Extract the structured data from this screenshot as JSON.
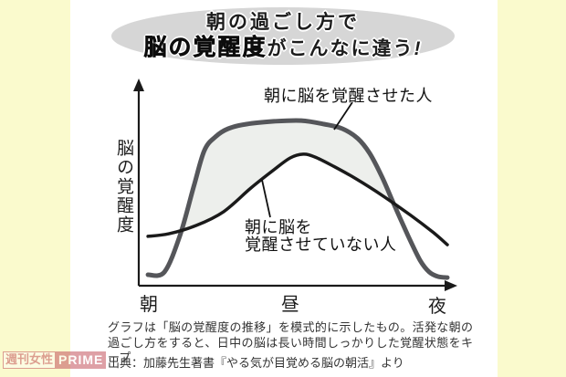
{
  "page": {
    "outer_bg": "#fafacd",
    "panel_bg": "#ffffff"
  },
  "title": {
    "ellipse_color": "#d6d6d6",
    "line1": "朝の過ごし方で",
    "line2_emphasis": "脳の覚醒度",
    "line2_tail": "がこんなに違う",
    "line2_exclaim": "!"
  },
  "chart_data": {
    "type": "line",
    "title": "朝の過ごし方で脳の覚醒度がこんなに違う!",
    "ylabel": "脳の覚醒度",
    "x_ticks": [
      "朝",
      "昼",
      "夜"
    ],
    "y_axis_note": "模式図・数値目盛りなし（相対的な覚醒度 0-100 で表現）",
    "x_axis_note": "x は 朝→夜 を 0-1 に正規化",
    "grid": false,
    "band_fill_color": "#edefec",
    "series": [
      {
        "name": "朝に脳を覚醒させた人",
        "color": "#55565a",
        "stroke_width": 5,
        "points": [
          [
            0.029,
            5.5
          ],
          [
            0.081,
            6.9
          ],
          [
            0.13,
            25.2
          ],
          [
            0.173,
            49.5
          ],
          [
            0.207,
            67.9
          ],
          [
            0.242,
            74.8
          ],
          [
            0.282,
            78.9
          ],
          [
            0.34,
            81.2
          ],
          [
            0.427,
            82.6
          ],
          [
            0.513,
            83.0
          ],
          [
            0.585,
            81.2
          ],
          [
            0.643,
            78.9
          ],
          [
            0.692,
            73.9
          ],
          [
            0.729,
            66.5
          ],
          [
            0.767,
            55.0
          ],
          [
            0.807,
            40.4
          ],
          [
            0.85,
            25.2
          ],
          [
            0.888,
            12.8
          ],
          [
            0.917,
            6.9
          ],
          [
            0.945,
            4.6
          ],
          [
            0.974,
            4.1
          ]
        ]
      },
      {
        "name": "朝に脳を覚醒させていない人",
        "color": "#1a1a1a",
        "stroke_width": 3.5,
        "points": [
          [
            0.029,
            24.8
          ],
          [
            0.095,
            26.1
          ],
          [
            0.182,
            30.3
          ],
          [
            0.268,
            37.2
          ],
          [
            0.354,
            49.1
          ],
          [
            0.427,
            58.3
          ],
          [
            0.478,
            64.2
          ],
          [
            0.519,
            66.1
          ],
          [
            0.556,
            64.7
          ],
          [
            0.614,
            60.1
          ],
          [
            0.686,
            53.7
          ],
          [
            0.772,
            45.0
          ],
          [
            0.859,
            35.3
          ],
          [
            0.931,
            26.6
          ],
          [
            0.974,
            20.6
          ]
        ]
      }
    ],
    "band": {
      "top_series": 0,
      "top_index_range": [
        2,
        16
      ],
      "bottom_reversed": [
        [
          0.807,
          41.0
        ],
        [
          0.772,
          45.0
        ],
        [
          0.686,
          53.7
        ],
        [
          0.614,
          60.1
        ],
        [
          0.556,
          64.7
        ],
        [
          0.519,
          66.1
        ],
        [
          0.478,
          64.2
        ],
        [
          0.427,
          58.3
        ],
        [
          0.354,
          49.1
        ],
        [
          0.268,
          37.2
        ],
        [
          0.182,
          30.3
        ],
        [
          0.13,
          26.0
        ]
      ]
    }
  },
  "labels": {
    "curve_awakened": "朝に脳を覚醒させた人",
    "curve_not_awakened_line1": "朝に脳を",
    "curve_not_awakened_line2": "覚醒させていない人"
  },
  "caption": {
    "body": "グラフは「脳の覚醒度の推移」を模式的に示したもの。活発な朝の過ごし方をすると、日中の脳は長い時間しっかりした覚醒状態をキープ",
    "source": "出典：加藤先生著書『やる気が目覚める脳の朝活』より"
  },
  "watermark": {
    "jp": "週刊女性",
    "en": "PRIME",
    "color": "#c4545e"
  }
}
